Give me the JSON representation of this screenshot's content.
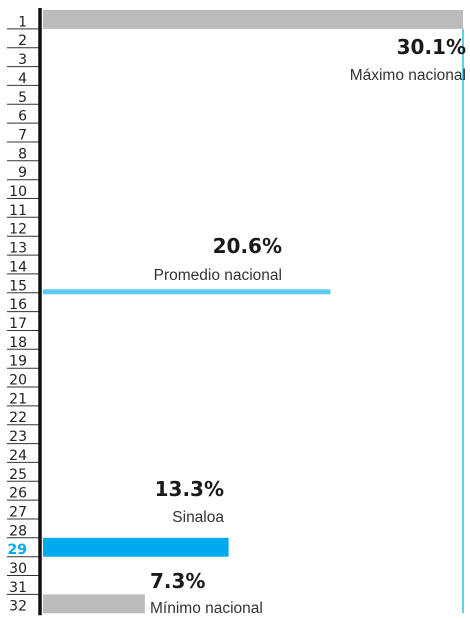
{
  "chart_data": {
    "type": "bar",
    "orientation": "horizontal",
    "categories": [
      "1",
      "2",
      "3",
      "4",
      "5",
      "6",
      "7",
      "8",
      "9",
      "10",
      "11",
      "12",
      "13",
      "14",
      "15",
      "16",
      "17",
      "18",
      "19",
      "20",
      "21",
      "22",
      "23",
      "24",
      "25",
      "26",
      "27",
      "28",
      "29",
      "30",
      "31",
      "32"
    ],
    "bars": [
      {
        "rank": 1,
        "value": 30.1,
        "color": "#bcbcbe"
      },
      {
        "rank": 29,
        "value": 13.3,
        "color": "#00aaef"
      },
      {
        "rank": 32,
        "value": 7.3,
        "color": "#bcbcbe"
      }
    ],
    "reference_lines": [
      {
        "name": "max",
        "value": 30.1,
        "color": "#00aaef",
        "orientation": "vertical"
      },
      {
        "name": "avg",
        "value": 20.6,
        "color": "#5ccaf0",
        "orientation": "horizontal",
        "at_rank": 16
      }
    ],
    "highlight_rank": 29,
    "annotations": {
      "max": {
        "value_text": "30.1%",
        "label": "Máximo nacional"
      },
      "avg": {
        "value_text": "20.6%",
        "label": "Promedio nacional"
      },
      "state": {
        "value_text": "13.3%",
        "label": "Sinaloa"
      },
      "min": {
        "value_text": "7.3%",
        "label": "Mínimo nacional"
      }
    },
    "xlim": [
      0,
      30.1
    ],
    "colors": {
      "axis": "#111111",
      "gray_bar": "#bcbcbe",
      "highlight": "#00aaef",
      "avg_line": "#5ccaf0"
    }
  }
}
